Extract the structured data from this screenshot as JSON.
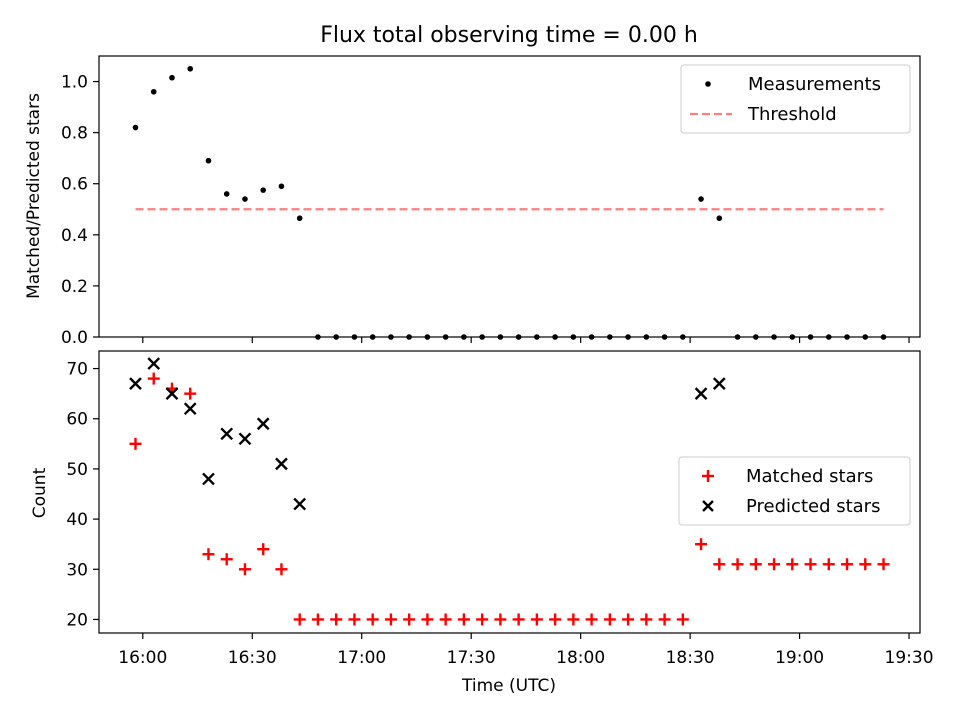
{
  "figure": {
    "title": "Flux total observing time = 0.00 h"
  },
  "chart_data": [
    {
      "type": "scatter",
      "panel": "top",
      "title": "Flux total observing time = 0.00 h",
      "xlabel": "",
      "ylabel": "Matched/Predicted stars",
      "xlim": [
        "15:48",
        "19:33"
      ],
      "ylim": [
        0,
        1.1
      ],
      "yticks": [
        0.0,
        0.2,
        0.4,
        0.6,
        0.8,
        1.0
      ],
      "ytick_labels": [
        "0.0",
        "0.2",
        "0.4",
        "0.6",
        "0.8",
        "1.0"
      ],
      "xticks": [
        "16:00",
        "16:30",
        "17:00",
        "17:30",
        "18:00",
        "18:30",
        "19:00",
        "19:30"
      ],
      "grid": false,
      "legend": {
        "placement": "top-right",
        "entries": [
          "Measurements",
          "Threshold"
        ]
      },
      "colors": {
        "measurements": "#000000",
        "threshold": "#ff7f7f"
      },
      "series": [
        {
          "name": "Measurements",
          "marker": "dot",
          "points": [
            [
              "15:58",
              0.82
            ],
            [
              "16:03",
              0.96
            ],
            [
              "16:08",
              1.015
            ],
            [
              "16:13",
              1.05
            ],
            [
              "16:18",
              0.69
            ],
            [
              "16:23",
              0.56
            ],
            [
              "16:28",
              0.54
            ],
            [
              "16:33",
              0.575
            ],
            [
              "16:38",
              0.59
            ],
            [
              "16:43",
              0.465
            ],
            [
              "16:48",
              0
            ],
            [
              "16:53",
              0
            ],
            [
              "16:58",
              0
            ],
            [
              "17:03",
              0
            ],
            [
              "17:08",
              0
            ],
            [
              "17:13",
              0
            ],
            [
              "17:18",
              0
            ],
            [
              "17:23",
              0
            ],
            [
              "17:28",
              0
            ],
            [
              "17:33",
              0
            ],
            [
              "17:38",
              0
            ],
            [
              "17:43",
              0
            ],
            [
              "17:48",
              0
            ],
            [
              "17:53",
              0
            ],
            [
              "17:58",
              0
            ],
            [
              "18:03",
              0
            ],
            [
              "18:08",
              0
            ],
            [
              "18:13",
              0
            ],
            [
              "18:18",
              0
            ],
            [
              "18:23",
              0
            ],
            [
              "18:28",
              0
            ],
            [
              "18:33",
              0.54
            ],
            [
              "18:38",
              0.465
            ],
            [
              "18:43",
              0
            ],
            [
              "18:48",
              0
            ],
            [
              "18:53",
              0
            ],
            [
              "18:58",
              0
            ],
            [
              "19:03",
              0
            ],
            [
              "19:08",
              0
            ],
            [
              "19:13",
              0
            ],
            [
              "19:18",
              0
            ],
            [
              "19:23",
              0
            ]
          ]
        },
        {
          "name": "Threshold",
          "style": "dashed",
          "points": [
            [
              "15:58",
              0.5
            ],
            [
              "19:23",
              0.5
            ]
          ]
        }
      ]
    },
    {
      "type": "scatter",
      "panel": "bottom",
      "xlabel": "Time (UTC)",
      "ylabel": "Count",
      "xlim": [
        "15:48",
        "19:33"
      ],
      "ylim": [
        17.3,
        73.5
      ],
      "yticks": [
        20,
        30,
        40,
        50,
        60,
        70
      ],
      "ytick_labels": [
        "20",
        "30",
        "40",
        "50",
        "60",
        "70"
      ],
      "xticks": [
        "16:00",
        "16:30",
        "17:00",
        "17:30",
        "18:00",
        "18:30",
        "19:00",
        "19:30"
      ],
      "xtick_labels": [
        "16:00",
        "16:30",
        "17:00",
        "17:30",
        "18:00",
        "18:30",
        "19:00",
        "19:30"
      ],
      "grid": false,
      "legend": {
        "placement": "center-right",
        "entries": [
          "Matched stars",
          "Predicted stars"
        ]
      },
      "colors": {
        "matched": "#ff0000",
        "predicted": "#000000"
      },
      "series": [
        {
          "name": "Matched stars",
          "marker": "plus",
          "points": [
            [
              "15:58",
              55
            ],
            [
              "16:03",
              68
            ],
            [
              "16:08",
              66
            ],
            [
              "16:13",
              65
            ],
            [
              "16:18",
              33
            ],
            [
              "16:23",
              32
            ],
            [
              "16:28",
              30
            ],
            [
              "16:33",
              34
            ],
            [
              "16:38",
              30
            ],
            [
              "16:43",
              20
            ],
            [
              "16:48",
              20
            ],
            [
              "16:53",
              20
            ],
            [
              "16:58",
              20
            ],
            [
              "17:03",
              20
            ],
            [
              "17:08",
              20
            ],
            [
              "17:13",
              20
            ],
            [
              "17:18",
              20
            ],
            [
              "17:23",
              20
            ],
            [
              "17:28",
              20
            ],
            [
              "17:33",
              20
            ],
            [
              "17:38",
              20
            ],
            [
              "17:43",
              20
            ],
            [
              "17:48",
              20
            ],
            [
              "17:53",
              20
            ],
            [
              "17:58",
              20
            ],
            [
              "18:03",
              20
            ],
            [
              "18:08",
              20
            ],
            [
              "18:13",
              20
            ],
            [
              "18:18",
              20
            ],
            [
              "18:23",
              20
            ],
            [
              "18:28",
              20
            ],
            [
              "18:33",
              35
            ],
            [
              "18:38",
              31
            ],
            [
              "18:43",
              31
            ],
            [
              "18:48",
              31
            ],
            [
              "18:53",
              31
            ],
            [
              "18:58",
              31
            ],
            [
              "19:03",
              31
            ],
            [
              "19:08",
              31
            ],
            [
              "19:13",
              31
            ],
            [
              "19:18",
              31
            ],
            [
              "19:23",
              31
            ]
          ]
        },
        {
          "name": "Predicted stars",
          "marker": "x",
          "points": [
            [
              "15:58",
              67
            ],
            [
              "16:03",
              71
            ],
            [
              "16:08",
              65
            ],
            [
              "16:13",
              62
            ],
            [
              "16:18",
              48
            ],
            [
              "16:23",
              57
            ],
            [
              "16:28",
              56
            ],
            [
              "16:33",
              59
            ],
            [
              "16:38",
              51
            ],
            [
              "16:43",
              43
            ],
            [
              "18:33",
              65
            ],
            [
              "18:38",
              67
            ]
          ]
        }
      ]
    }
  ]
}
